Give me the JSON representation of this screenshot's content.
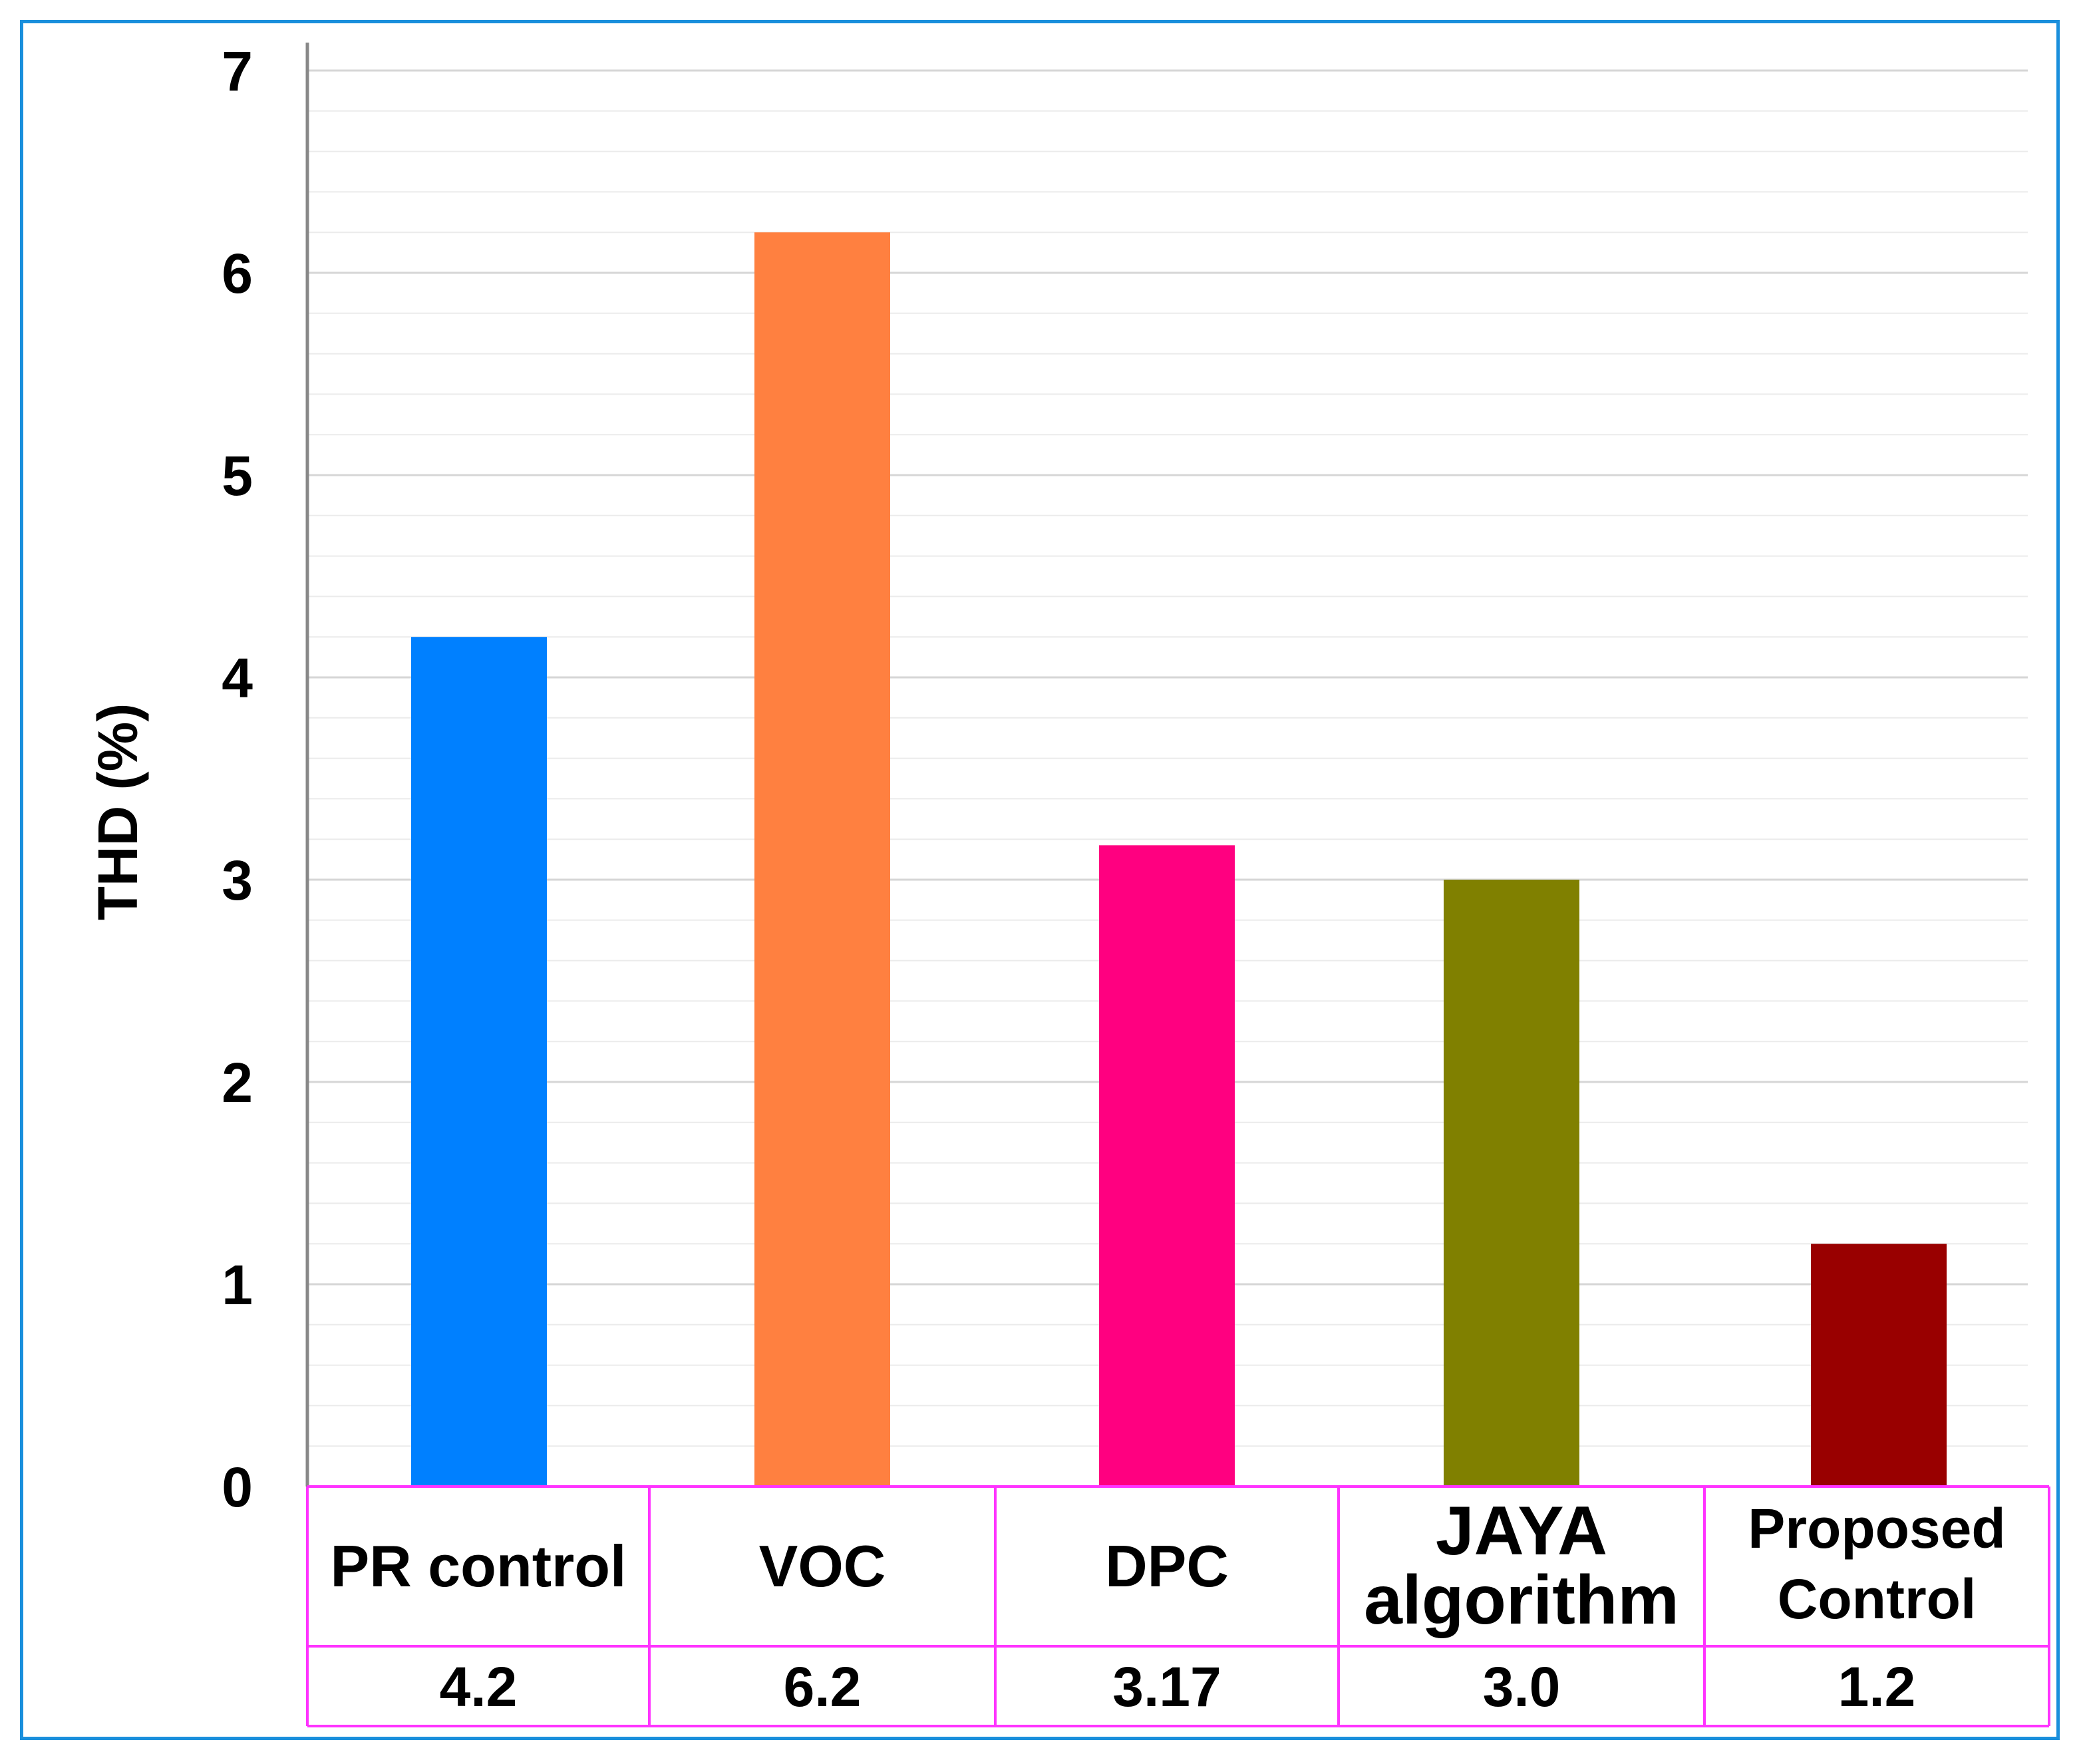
{
  "chart_data": {
    "type": "bar",
    "title": "",
    "xlabel": "",
    "ylabel": "THD (%)",
    "ylim": [
      0,
      7
    ],
    "yticks": [
      0,
      1,
      2,
      3,
      4,
      5,
      6,
      7
    ],
    "grid": true,
    "categories": [
      {
        "lines": [
          "PR control"
        ],
        "value": 4.2,
        "value_label": "4.2",
        "color": "#0080ff"
      },
      {
        "lines": [
          "VOC"
        ],
        "value": 6.2,
        "value_label": "6.2",
        "color": "#ff8040"
      },
      {
        "lines": [
          "DPC"
        ],
        "value": 3.17,
        "value_label": "3.17",
        "color": "#ff0080"
      },
      {
        "lines": [
          "JAYA",
          "algorithm"
        ],
        "value": 3.0,
        "value_label": "3.0",
        "color": "#808000"
      },
      {
        "lines": [
          "Proposed",
          "Control"
        ],
        "value": 1.2,
        "value_label": "1.2",
        "color": "#990000"
      }
    ],
    "table_border_color": "#ff33ff"
  }
}
